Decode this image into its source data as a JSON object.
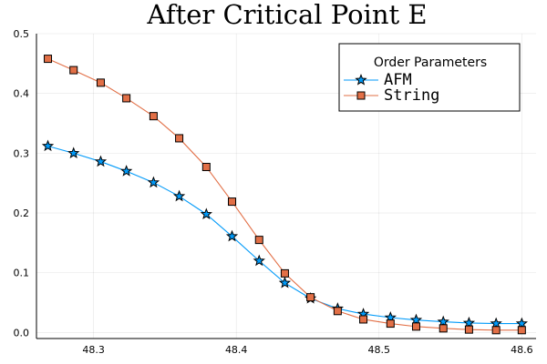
{
  "chart_data": {
    "type": "line",
    "title": "After Critical Point E",
    "xlabel": "",
    "ylabel": "",
    "xlim": [
      48.26,
      48.61
    ],
    "ylim": [
      -0.01,
      0.5
    ],
    "xticks": [
      48.3,
      48.4,
      48.5,
      48.6
    ],
    "xtick_labels": [
      "48.3",
      "48.4",
      "48.5",
      "48.6"
    ],
    "yticks": [
      0.0,
      0.1,
      0.2,
      0.3,
      0.4,
      0.5
    ],
    "ytick_labels": [
      "0.0",
      "0.1",
      "0.2",
      "0.3",
      "0.4",
      "0.5"
    ],
    "grid": true,
    "legend": {
      "title": "Order Parameters",
      "position": "top-right"
    },
    "x": [
      48.268,
      48.286,
      48.305,
      48.323,
      48.342,
      48.36,
      48.379,
      48.397,
      48.416,
      48.434,
      48.452,
      48.471,
      48.489,
      48.508,
      48.526,
      48.545,
      48.563,
      48.582,
      48.6
    ],
    "series": [
      {
        "name": "AFM",
        "color": "#009af9",
        "marker": "star",
        "values": [
          0.312,
          0.3,
          0.286,
          0.27,
          0.251,
          0.228,
          0.198,
          0.161,
          0.12,
          0.083,
          0.057,
          0.04,
          0.031,
          0.025,
          0.021,
          0.018,
          0.016,
          0.015,
          0.015
        ]
      },
      {
        "name": "String",
        "color": "#e26f46",
        "marker": "square",
        "values": [
          0.458,
          0.439,
          0.418,
          0.392,
          0.362,
          0.325,
          0.277,
          0.219,
          0.155,
          0.099,
          0.059,
          0.036,
          0.022,
          0.015,
          0.01,
          0.007,
          0.005,
          0.004,
          0.004
        ]
      }
    ]
  }
}
